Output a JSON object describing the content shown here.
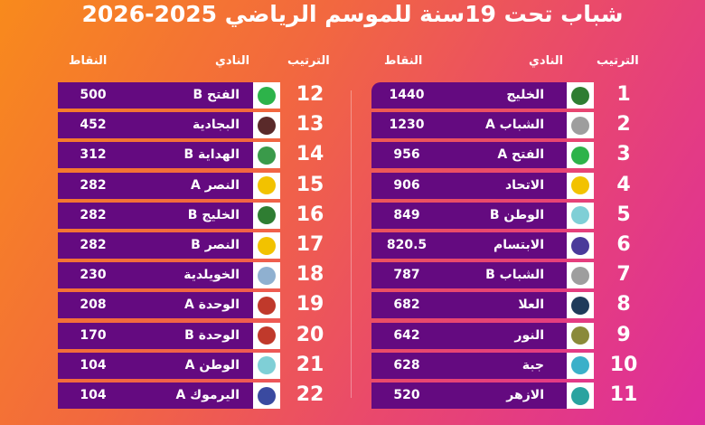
{
  "title": "شباب تحت 19سنة للموسم الرياضي 2025-2026",
  "headers": {
    "rank": "الترتيب",
    "club": "النادي",
    "points": "النقاط"
  },
  "colors": {
    "row_bar": "#640a80",
    "background_start": "#f88a1c",
    "background_end": "#dd2c9e"
  },
  "right_table": [
    {
      "rank": "1",
      "club": "الخليج",
      "points": "1440",
      "logo": "#2f7d32"
    },
    {
      "rank": "2",
      "club": "الشباب A",
      "points": "1230",
      "logo": "#9e9e9e"
    },
    {
      "rank": "3",
      "club": "الفتح A",
      "points": "956",
      "logo": "#2db34a"
    },
    {
      "rank": "4",
      "club": "الاتحاد",
      "points": "906",
      "logo": "#f2c200"
    },
    {
      "rank": "5",
      "club": "الوطن B",
      "points": "849",
      "logo": "#7fcfd6"
    },
    {
      "rank": "6",
      "club": "الابتسام",
      "points": "820.5",
      "logo": "#4a3a9a"
    },
    {
      "rank": "7",
      "club": "الشباب B",
      "points": "787",
      "logo": "#9e9e9e"
    },
    {
      "rank": "8",
      "club": "العلا",
      "points": "682",
      "logo": "#1f3b5a"
    },
    {
      "rank": "9",
      "club": "النور",
      "points": "642",
      "logo": "#8a8a3a"
    },
    {
      "rank": "10",
      "club": "جبة",
      "points": "628",
      "logo": "#3bb0c9"
    },
    {
      "rank": "11",
      "club": "الازهر",
      "points": "520",
      "logo": "#2aa3a0"
    }
  ],
  "left_table": [
    {
      "rank": "12",
      "club": "الفتح B",
      "points": "500",
      "logo": "#2db34a"
    },
    {
      "rank": "13",
      "club": "البجادية",
      "points": "452",
      "logo": "#5a2a2a"
    },
    {
      "rank": "14",
      "club": "الهداية B",
      "points": "312",
      "logo": "#3a9a4a"
    },
    {
      "rank": "15",
      "club": "النصر A",
      "points": "282",
      "logo": "#f2c200"
    },
    {
      "rank": "16",
      "club": "الخليج B",
      "points": "282",
      "logo": "#2f7d32"
    },
    {
      "rank": "17",
      "club": "النصر B",
      "points": "282",
      "logo": "#f2c200"
    },
    {
      "rank": "18",
      "club": "الخويلدية",
      "points": "230",
      "logo": "#8fb0d0"
    },
    {
      "rank": "19",
      "club": "الوحدة A",
      "points": "208",
      "logo": "#c0392b"
    },
    {
      "rank": "20",
      "club": "الوحدة B",
      "points": "170",
      "logo": "#c0392b"
    },
    {
      "rank": "21",
      "club": "الوطن A",
      "points": "104",
      "logo": "#7fcfd6"
    },
    {
      "rank": "22",
      "club": "اليرموك A",
      "points": "104",
      "logo": "#3a4aa0"
    }
  ]
}
